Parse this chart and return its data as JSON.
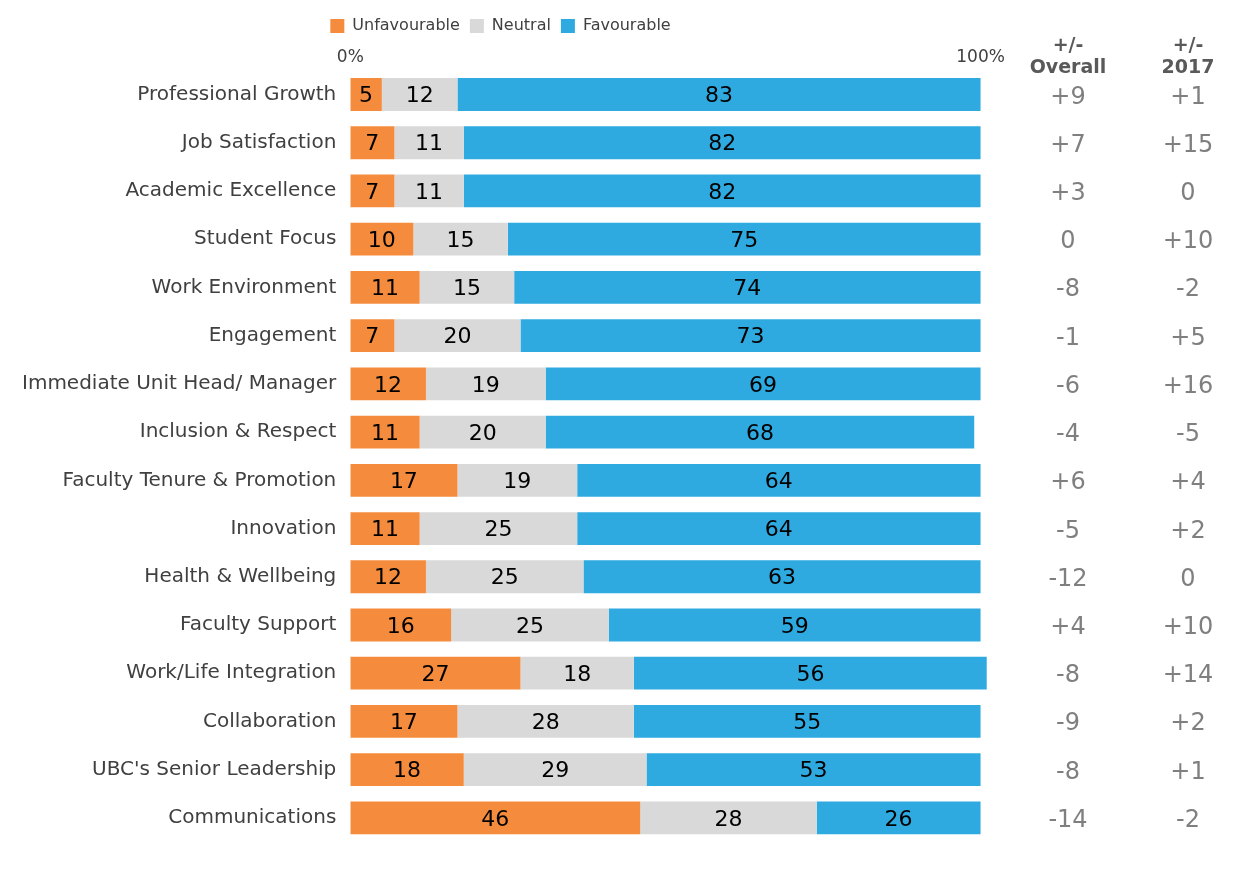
{
  "chart_data": [
    {
      "type": "bar",
      "orientation": "horizontal",
      "stacked": true,
      "data_labels": true,
      "legend": "top",
      "grid": false,
      "categories": [
        "Professional Growth",
        "Job Satisfaction",
        "Academic Excellence",
        "Student Focus",
        "Work Environment",
        "Engagement",
        "Immediate Unit Head/ Manager",
        "Inclusion & Respect",
        "Faculty Tenure & Promotion",
        "Innovation",
        "Health & Wellbeing",
        "Faculty Support",
        "Work/Life Integration",
        "Collaboration",
        "UBC's Senior Leadership",
        "Communications"
      ],
      "series": [
        {
          "name": "Unfavourable",
          "color": "#f58b3c",
          "values": [
            5,
            7,
            7,
            10,
            11,
            7,
            12,
            11,
            17,
            11,
            12,
            16,
            27,
            17,
            18,
            46
          ]
        },
        {
          "name": "Neutral",
          "color": "#d9d9d9",
          "values": [
            12,
            11,
            11,
            15,
            15,
            20,
            19,
            20,
            19,
            25,
            25,
            25,
            18,
            28,
            29,
            28
          ]
        },
        {
          "name": "Favourable",
          "color": "#2eaae1",
          "values": [
            83,
            82,
            82,
            75,
            74,
            73,
            69,
            68,
            64,
            64,
            63,
            59,
            56,
            55,
            53,
            26
          ]
        }
      ],
      "xlim": [
        0,
        101
      ],
      "xticks": [
        {
          "value": 0,
          "label": "0%"
        },
        {
          "value": 100,
          "label": "100%"
        }
      ]
    },
    {
      "type": "other",
      "title": "+/-\nOverall",
      "value_labels": [
        "+9",
        "+7",
        "+3",
        "0",
        "-8",
        "-1",
        "-6",
        "-4",
        "+6",
        "-5",
        "-12",
        "+4",
        "-8",
        "-9",
        "-8",
        "-14"
      ]
    },
    {
      "type": "other",
      "title": "+/-\n2017",
      "value_labels": [
        "+1",
        "+15",
        "0",
        "+10",
        "-2",
        "+5",
        "+16",
        "-5",
        "+4",
        "+2",
        "0",
        "+10",
        "+14",
        "+2",
        "+1",
        "-2"
      ]
    }
  ]
}
